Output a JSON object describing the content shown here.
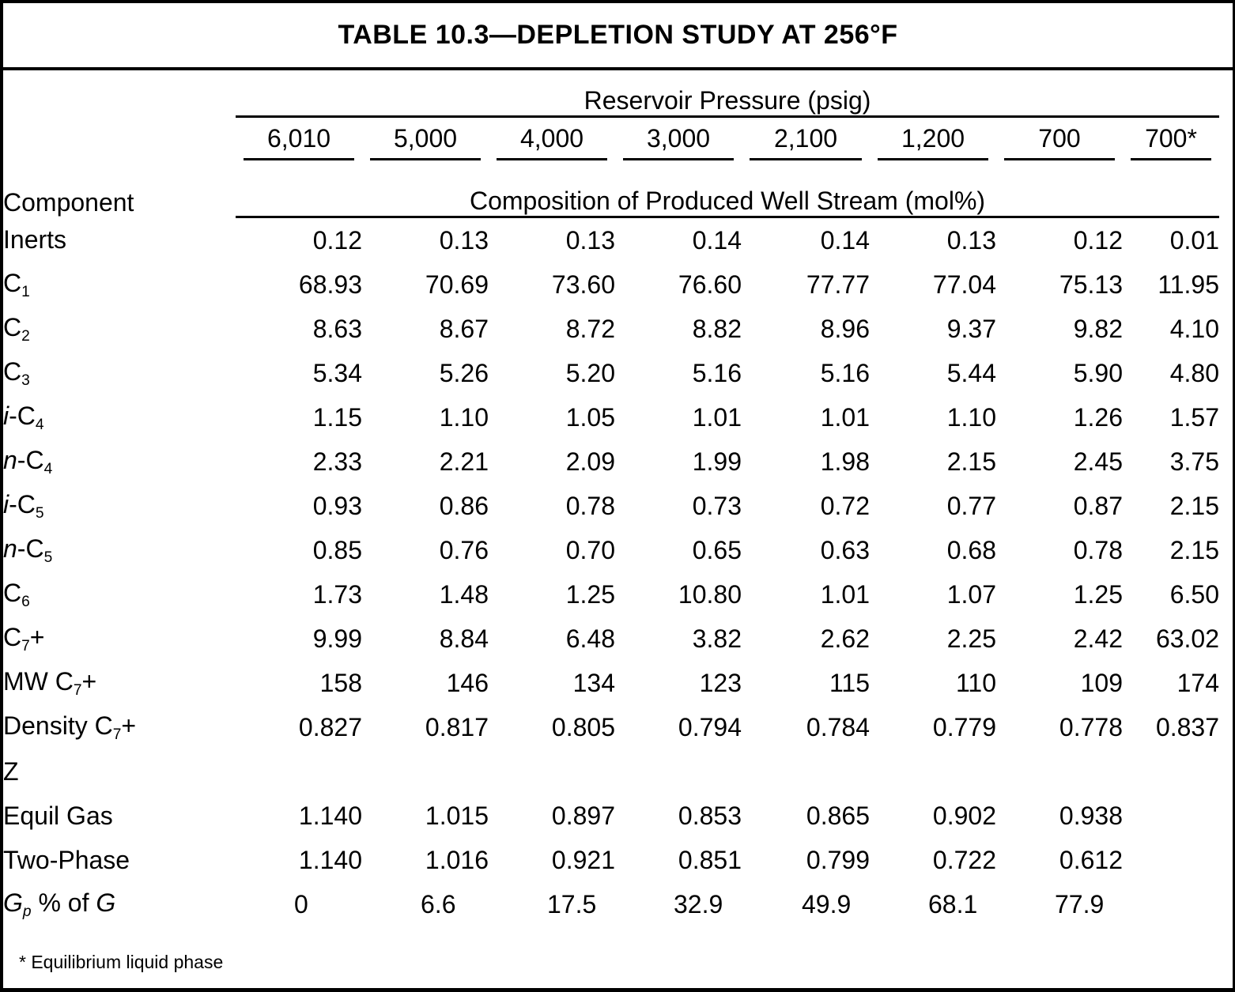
{
  "title": "TABLE 10.3—DEPLETION STUDY AT 256°F",
  "colors": {
    "text": "#000000",
    "background": "#ffffff",
    "rules": "#000000"
  },
  "table": {
    "pressure_group_label": "Reservoir Pressure (psig)",
    "pressures": [
      "6,010",
      "5,000",
      "4,000",
      "3,000",
      "2,100",
      "1,200",
      "700",
      "700*"
    ],
    "component_label": "Component",
    "composition_label": "Composition of Produced Well Stream (mol%)",
    "rows": [
      {
        "name": "inerts",
        "label": [
          {
            "t": "Inerts"
          }
        ],
        "values": [
          "0.12",
          "0.13",
          "0.13",
          "0.14",
          "0.14",
          "0.13",
          "0.12",
          "0.01"
        ]
      },
      {
        "name": "c1",
        "label": [
          {
            "t": "C"
          },
          {
            "t": "1",
            "s": "sub"
          }
        ],
        "values": [
          "68.93",
          "70.69",
          "73.60",
          "76.60",
          "77.77",
          "77.04",
          "75.13",
          "11.95"
        ]
      },
      {
        "name": "c2",
        "label": [
          {
            "t": "C"
          },
          {
            "t": "2",
            "s": "sub"
          }
        ],
        "values": [
          "8.63",
          "8.67",
          "8.72",
          "8.82",
          "8.96",
          "9.37",
          "9.82",
          "4.10"
        ]
      },
      {
        "name": "c3",
        "label": [
          {
            "t": "C"
          },
          {
            "t": "3",
            "s": "sub"
          }
        ],
        "values": [
          "5.34",
          "5.26",
          "5.20",
          "5.16",
          "5.16",
          "5.44",
          "5.90",
          "4.80"
        ]
      },
      {
        "name": "i-c4",
        "label": [
          {
            "t": "i",
            "s": "i"
          },
          {
            "t": "-C"
          },
          {
            "t": "4",
            "s": "sub"
          }
        ],
        "values": [
          "1.15",
          "1.10",
          "1.05",
          "1.01",
          "1.01",
          "1.10",
          "1.26",
          "1.57"
        ]
      },
      {
        "name": "n-c4",
        "label": [
          {
            "t": "n",
            "s": "i"
          },
          {
            "t": "-C"
          },
          {
            "t": "4",
            "s": "sub"
          }
        ],
        "values": [
          "2.33",
          "2.21",
          "2.09",
          "1.99",
          "1.98",
          "2.15",
          "2.45",
          "3.75"
        ]
      },
      {
        "name": "i-c5",
        "label": [
          {
            "t": "i",
            "s": "i"
          },
          {
            "t": "-C"
          },
          {
            "t": "5",
            "s": "sub"
          }
        ],
        "values": [
          "0.93",
          "0.86",
          "0.78",
          "0.73",
          "0.72",
          "0.77",
          "0.87",
          "2.15"
        ]
      },
      {
        "name": "n-c5",
        "label": [
          {
            "t": "n",
            "s": "i"
          },
          {
            "t": "-C"
          },
          {
            "t": "5",
            "s": "sub"
          }
        ],
        "values": [
          "0.85",
          "0.76",
          "0.70",
          "0.65",
          "0.63",
          "0.68",
          "0.78",
          "2.15"
        ]
      },
      {
        "name": "c6",
        "label": [
          {
            "t": "C"
          },
          {
            "t": "6",
            "s": "sub"
          }
        ],
        "values": [
          "1.73",
          "1.48",
          "1.25",
          "10.80",
          "1.01",
          "1.07",
          "1.25",
          "6.50"
        ]
      },
      {
        "name": "c7-plus",
        "label": [
          {
            "t": "C"
          },
          {
            "t": "7",
            "s": "sub"
          },
          {
            "t": "+"
          }
        ],
        "values": [
          "9.99",
          "8.84",
          "6.48",
          "3.82",
          "2.62",
          "2.25",
          "2.42",
          "63.02"
        ]
      },
      {
        "name": "mw-c7-plus",
        "label": [
          {
            "t": "MW C"
          },
          {
            "t": "7",
            "s": "sub"
          },
          {
            "t": "+"
          }
        ],
        "values": [
          "158",
          "146",
          "134",
          "123",
          "115",
          "110",
          "109",
          "174"
        ]
      },
      {
        "name": "density-c7-plus",
        "label": [
          {
            "t": "Density C"
          },
          {
            "t": "7",
            "s": "sub"
          },
          {
            "t": "+"
          }
        ],
        "values": [
          "0.827",
          "0.817",
          "0.805",
          "0.794",
          "0.784",
          "0.779",
          "0.778",
          "0.837"
        ]
      },
      {
        "name": "z",
        "label": [
          {
            "t": "Z"
          }
        ],
        "values": [
          "",
          "",
          "",
          "",
          "",
          "",
          "",
          ""
        ]
      },
      {
        "name": "equil-gas",
        "label": [
          {
            "t": "Equil Gas"
          }
        ],
        "values": [
          "1.140",
          "1.015",
          "0.897",
          "0.853",
          "0.865",
          "0.902",
          "0.938",
          ""
        ]
      },
      {
        "name": "two-phase",
        "label": [
          {
            "t": "Two-Phase"
          }
        ],
        "values": [
          "1.140",
          "1.016",
          "0.921",
          "0.851",
          "0.799",
          "0.722",
          "0.612",
          ""
        ]
      },
      {
        "name": "gp-percent-of-g",
        "align": "left",
        "label": [
          {
            "t": "G",
            "s": "i"
          },
          {
            "t": "p",
            "s": "isub"
          },
          {
            "t": " % of "
          },
          {
            "t": "G",
            "s": "i"
          }
        ],
        "values": [
          "0",
          "6.6",
          "17.5",
          "32.9",
          "49.9",
          "68.1",
          "77.9",
          ""
        ]
      }
    ]
  },
  "footnote": "* Equilibrium liquid phase"
}
